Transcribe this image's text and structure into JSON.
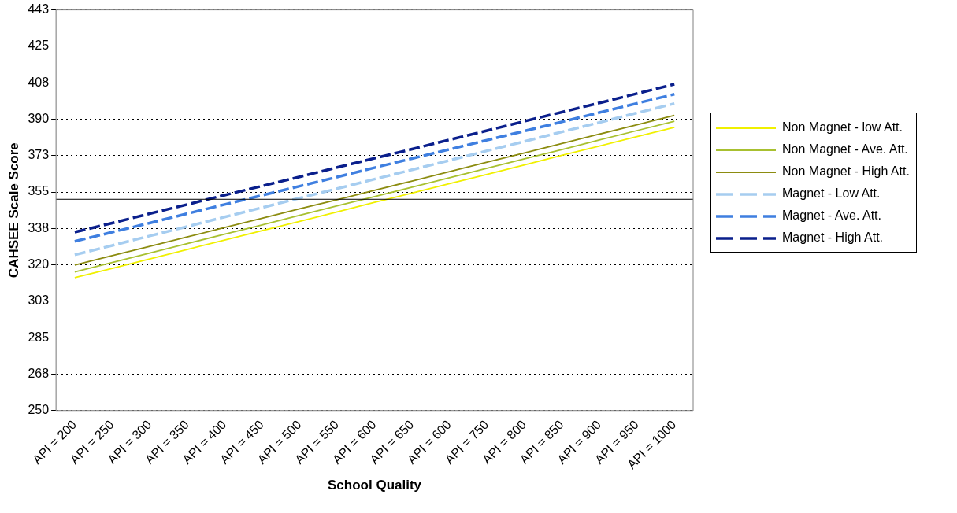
{
  "chart_data": {
    "type": "line",
    "xlabel": "School Quality",
    "ylabel": "CAHSEE Scale Score",
    "categories": [
      "API = 200",
      "API = 250",
      "API = 300",
      "API = 350",
      "API = 400",
      "API = 450",
      "API = 500",
      "API = 550",
      "API = 600",
      "API = 650",
      "API = 600",
      "API = 750",
      "API = 800",
      "API = 850",
      "API = 900",
      "API = 950",
      "API = 1000"
    ],
    "series": [
      {
        "name": "Non Magnet - low Att.",
        "color": "#f0f000",
        "line_style": "solid",
        "values": [
          313.8,
          318.3,
          322.8,
          327.4,
          331.9,
          336.4,
          340.9,
          345.4,
          350.0,
          354.5,
          359.0,
          363.5,
          368.0,
          372.6,
          377.1,
          381.6,
          386.1
        ]
      },
      {
        "name": "Non Magnet - Ave. Att.",
        "color": "#a8c030",
        "line_style": "solid",
        "values": [
          316.6,
          321.1,
          325.7,
          330.2,
          334.7,
          339.2,
          343.8,
          348.3,
          352.8,
          357.3,
          361.9,
          366.4,
          370.9,
          375.4,
          380.0,
          384.5,
          389.0
        ]
      },
      {
        "name": "Non Magnet - High Att.",
        "color": "#8c8c10",
        "line_style": "solid",
        "values": [
          319.9,
          324.4,
          328.9,
          333.4,
          337.9,
          342.4,
          346.9,
          351.3,
          355.8,
          360.3,
          364.8,
          369.3,
          373.8,
          378.3,
          382.8,
          387.3,
          391.8
        ]
      },
      {
        "name": "Magnet - Low Att.",
        "color": "#a6cdf0",
        "line_style": "dashed",
        "values": [
          324.8,
          329.3,
          333.9,
          338.4,
          343.0,
          347.5,
          352.1,
          356.6,
          361.2,
          365.7,
          370.2,
          374.8,
          379.3,
          383.9,
          388.4,
          393.0,
          397.5
        ]
      },
      {
        "name": "Magnet - Ave. Att.",
        "color": "#3f7fe0",
        "line_style": "dashed",
        "values": [
          331.3,
          335.7,
          340.1,
          344.6,
          349.0,
          353.4,
          357.8,
          362.2,
          366.7,
          371.1,
          375.5,
          379.9,
          384.3,
          388.7,
          393.2,
          397.6,
          402.0
        ]
      },
      {
        "name": "Magnet - High Att.",
        "color": "#0a1f8c",
        "line_style": "dashed",
        "values": [
          335.7,
          340.1,
          344.6,
          349.0,
          353.5,
          357.9,
          362.3,
          366.8,
          371.2,
          375.6,
          380.1,
          384.5,
          389.0,
          393.4,
          397.8,
          402.3,
          406.8
        ]
      }
    ],
    "ylim": [
      250,
      442.5
    ],
    "yticks": [
      250,
      {
        "value": 267.5,
        "label": "268"
      },
      285,
      {
        "value": 302.5,
        "label": "303"
      },
      320,
      {
        "value": 337.5,
        "label": "338"
      },
      355,
      {
        "value": 372.5,
        "label": "373"
      },
      390,
      {
        "value": 407.5,
        "label": "408"
      },
      425,
      {
        "value": 442.5,
        "label": "443"
      }
    ],
    "ref_lines": [
      {
        "axis": "y",
        "value": 351.5,
        "color": "#000000"
      }
    ],
    "grid": "y",
    "legend": "right",
    "marker": "none"
  }
}
